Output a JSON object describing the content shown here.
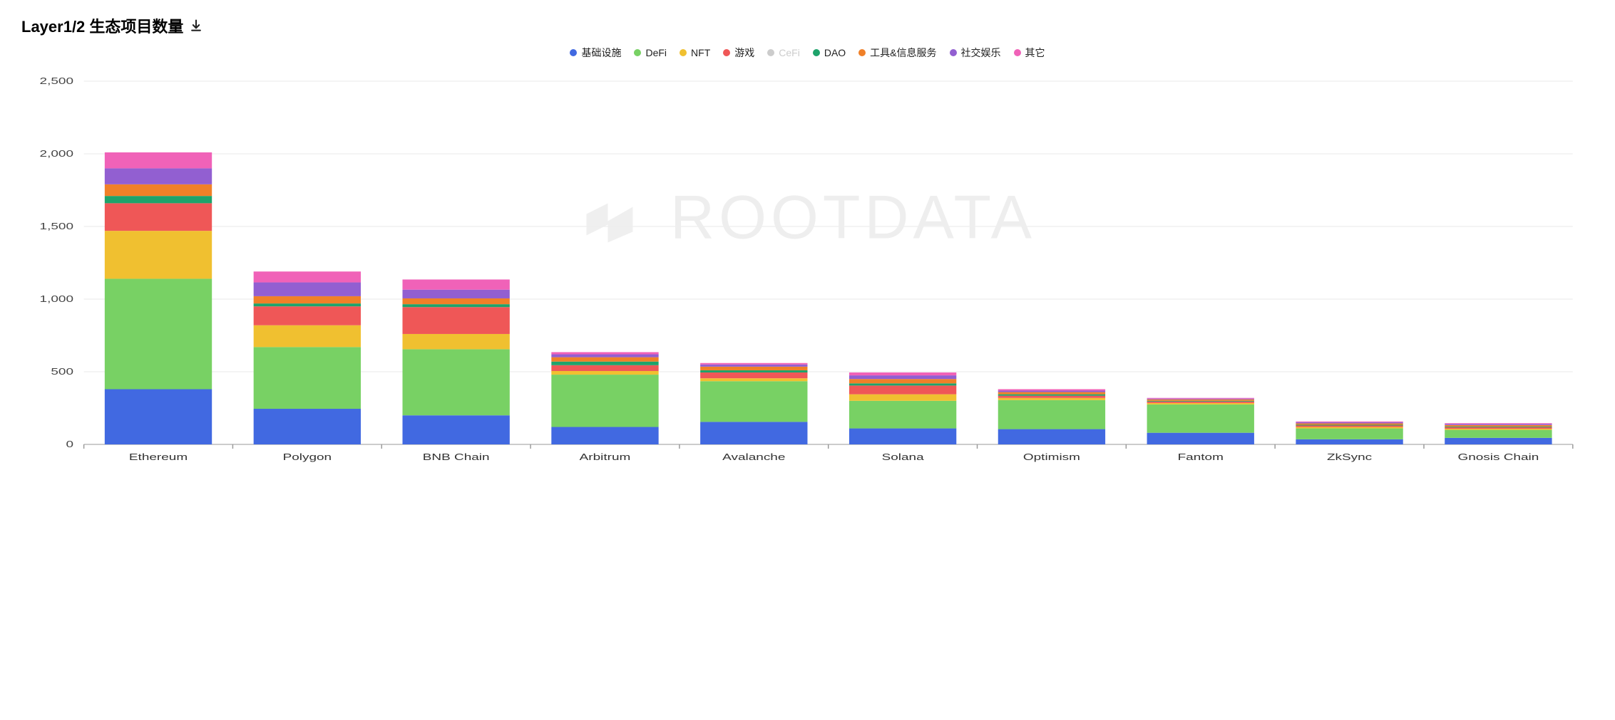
{
  "title": "Layer1/2 生态项目数量",
  "watermark_text": "ROOTDATA",
  "chart": {
    "type": "stacked-bar",
    "ylim": [
      0,
      2500
    ],
    "ytick_step": 500,
    "yticks": [
      "0",
      "500",
      "1,000",
      "1,500",
      "2,000",
      "2,500"
    ],
    "background_color": "#ffffff",
    "grid_color": "#eaeaea",
    "axis_line_color": "#999999",
    "tick_font_size": 13,
    "tick_color": "#444444",
    "label_font_size": 13,
    "label_color": "#333333",
    "bar_group_width_ratio": 0.72,
    "categories": [
      "Ethereum",
      "Polygon",
      "BNB Chain",
      "Arbitrum",
      "Avalanche",
      "Solana",
      "Optimism",
      "Fantom",
      "ZkSync",
      "Gnosis Chain"
    ],
    "series": [
      {
        "key": "infra",
        "label": "基础设施",
        "color": "#4169e1",
        "disabled": false
      },
      {
        "key": "defi",
        "label": "DeFi",
        "color": "#78d164",
        "disabled": false
      },
      {
        "key": "nft",
        "label": "NFT",
        "color": "#f0c030",
        "disabled": false
      },
      {
        "key": "game",
        "label": "游戏",
        "color": "#ef5757",
        "disabled": false
      },
      {
        "key": "cefi",
        "label": "CeFi",
        "color": "#cccccc",
        "disabled": true
      },
      {
        "key": "dao",
        "label": "DAO",
        "color": "#1ea36b",
        "disabled": false
      },
      {
        "key": "tools",
        "label": "工具&信息服务",
        "color": "#f08028",
        "disabled": false
      },
      {
        "key": "social",
        "label": "社交娱乐",
        "color": "#925fd1",
        "disabled": false
      },
      {
        "key": "other",
        "label": "其它",
        "color": "#f062b8",
        "disabled": false
      }
    ],
    "data": [
      {
        "infra": 380,
        "defi": 760,
        "nft": 330,
        "game": 190,
        "dao": 50,
        "tools": 80,
        "social": 110,
        "other": 110
      },
      {
        "infra": 245,
        "defi": 425,
        "nft": 150,
        "game": 130,
        "dao": 20,
        "tools": 50,
        "social": 95,
        "other": 75
      },
      {
        "infra": 200,
        "defi": 455,
        "nft": 105,
        "game": 185,
        "dao": 20,
        "tools": 40,
        "social": 60,
        "other": 70
      },
      {
        "infra": 120,
        "defi": 360,
        "nft": 25,
        "game": 40,
        "dao": 25,
        "tools": 30,
        "social": 20,
        "other": 15
      },
      {
        "infra": 155,
        "defi": 280,
        "nft": 20,
        "game": 40,
        "dao": 15,
        "tools": 25,
        "social": 15,
        "other": 10
      },
      {
        "infra": 110,
        "defi": 190,
        "nft": 45,
        "game": 60,
        "dao": 15,
        "tools": 30,
        "social": 25,
        "other": 20
      },
      {
        "infra": 105,
        "defi": 200,
        "nft": 15,
        "game": 15,
        "dao": 10,
        "tools": 15,
        "social": 10,
        "other": 10
      },
      {
        "infra": 80,
        "defi": 195,
        "nft": 10,
        "game": 10,
        "dao": 5,
        "tools": 10,
        "social": 5,
        "other": 5
      },
      {
        "infra": 35,
        "defi": 75,
        "nft": 10,
        "game": 10,
        "dao": 5,
        "tools": 10,
        "social": 8,
        "other": 5
      },
      {
        "infra": 45,
        "defi": 55,
        "nft": 8,
        "game": 10,
        "dao": 5,
        "tools": 10,
        "social": 8,
        "other": 5
      }
    ]
  }
}
